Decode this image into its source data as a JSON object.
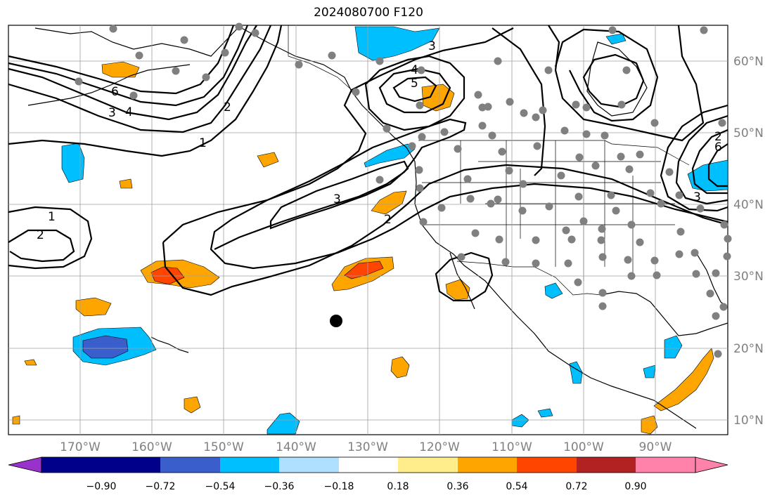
{
  "title": "2024080700 F120",
  "map": {
    "lon_labels": [
      "170°W",
      "160°W",
      "150°W",
      "140°W",
      "130°W",
      "120°W",
      "110°W",
      "100°W",
      "90°W"
    ],
    "lat_labels": [
      "60°N",
      "50°N",
      "40°N",
      "30°N",
      "20°N",
      "10°N"
    ],
    "contour_labels": [
      "1",
      "2",
      "3",
      "4",
      "5",
      "6",
      "1",
      "2",
      "3",
      "2",
      "4",
      "3",
      "6",
      "2",
      "3"
    ]
  },
  "colorbar": {
    "ticks": [
      "−0.90",
      "−0.72",
      "−0.54",
      "−0.36",
      "−0.18",
      "0.18",
      "0.36",
      "0.54",
      "0.72",
      "0.90"
    ],
    "colors": [
      "#9932cc",
      "#00008b",
      "#3a5fcd",
      "#00bfff",
      "#b0e0ff",
      "#ffffff",
      "#ffec8b",
      "#ffa500",
      "#ff4500",
      "#b22222",
      "#ff82ab"
    ]
  }
}
